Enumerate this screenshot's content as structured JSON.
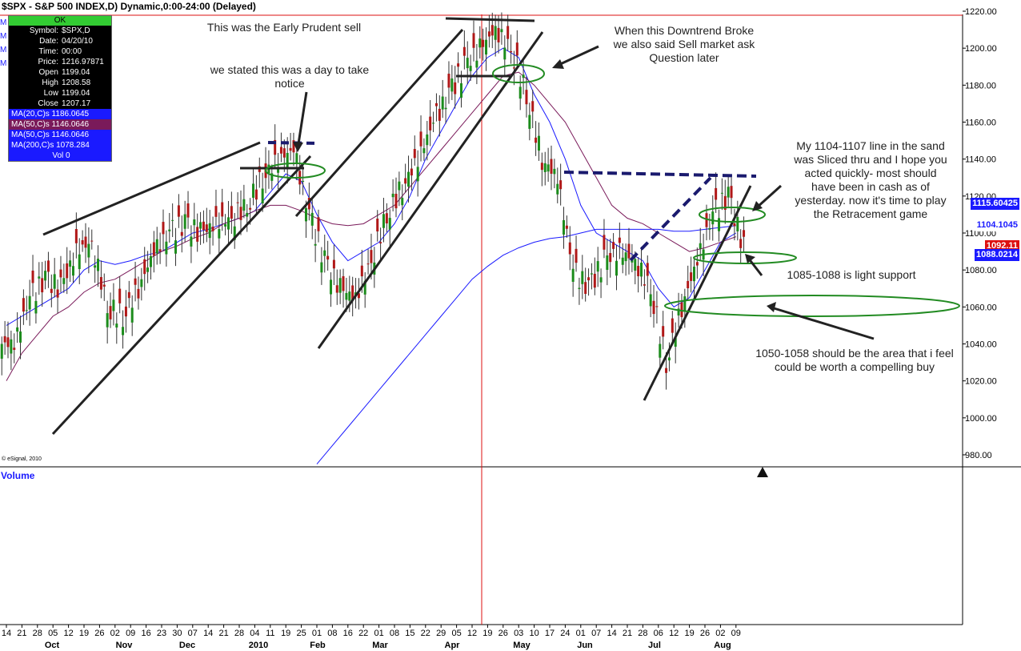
{
  "header": {
    "title": "$SPX - S&P 500 INDEX,D) Dynamic,0:00-24:00 (Delayed)"
  },
  "info_panel": {
    "status": "OK",
    "rows": [
      {
        "k": "Symbol:",
        "v": "$SPX,D"
      },
      {
        "k": "Date:",
        "v": "04/20/10"
      },
      {
        "k": "Time:",
        "v": "00:00"
      },
      {
        "k": "Price:",
        "v": "1216.97871"
      },
      {
        "k": "Open",
        "v": "1199.04"
      },
      {
        "k": "High",
        "v": "1208.58"
      },
      {
        "k": "Low",
        "v": "1199.04"
      },
      {
        "k": "Close",
        "v": "1207.17"
      }
    ],
    "ma_rows": [
      "MA(20,C)s 1186.0645",
      "MA(50,C)s 1146.0646",
      "MA(50,C)s 1146.0646",
      "MA(200,C)s 1078.284"
    ],
    "vol": "Vol 0",
    "side_letters": [
      "M",
      "M",
      "M",
      "M"
    ]
  },
  "price_tags": [
    {
      "label": "1115.60425",
      "color": "#1a1aff",
      "text_color": "#ffffff"
    },
    {
      "label": "1104.1045",
      "color": "#ffffff",
      "text_color": "#1a1aff"
    },
    {
      "label": "1092.11",
      "color": "#dd1111",
      "text_color": "#ffffff"
    },
    {
      "label": "1088.0214",
      "color": "#1a1aff",
      "text_color": "#ffffff"
    }
  ],
  "volume_label": "Volume",
  "copyright": "© eSignal, 2010",
  "annotations": {
    "early_sell": "This was the Early Prudent sell",
    "day_notice": "we stated this was a day to take notice",
    "downtrend": "When this Downtrend Broke we also said Sell market ask Question later",
    "sliced": "My 1104-1107 line in the sand was Sliced thru and I hope you acted quickly- most should have been in cash as of yesterday.  now it's time to play the Retracement game",
    "light_support": "1085-1088 is light support",
    "compelling_buy": "1050-1058 should be the area that i feel could be worth a compelling buy"
  },
  "chart_data": {
    "type": "candlestick",
    "title": "$SPX - S&P 500 INDEX,D) Dynamic,0:00-24:00 (Delayed)",
    "ylim": [
      970,
      1225
    ],
    "y_ticks": [
      980,
      1000,
      1020,
      1040,
      1060,
      1080,
      1100,
      1120,
      1140,
      1160,
      1180,
      1200,
      1220
    ],
    "x_day_ticks": [
      "14",
      "21",
      "28",
      "05",
      "12",
      "19",
      "26",
      "02",
      "09",
      "16",
      "23",
      "30",
      "07",
      "14",
      "21",
      "28",
      "04",
      "11",
      "19",
      "25",
      "01",
      "08",
      "16",
      "22",
      "01",
      "08",
      "15",
      "22",
      "29",
      "05",
      "12",
      "19",
      "26",
      "03",
      "10",
      "17",
      "24",
      "01",
      "07",
      "14",
      "21",
      "28",
      "06",
      "12",
      "19",
      "26",
      "02",
      "09"
    ],
    "x_month_labels": [
      "Oct",
      "Nov",
      "Dec",
      "2010",
      "Feb",
      "Mar",
      "Apr",
      "May",
      "Jun",
      "Jul",
      "Aug"
    ],
    "weekly_closes": [
      1040,
      1065,
      1075,
      1070,
      1090,
      1095,
      1060,
      1055,
      1070,
      1090,
      1100,
      1105,
      1100,
      1105,
      1108,
      1115,
      1130,
      1140,
      1145,
      1110,
      1085,
      1070,
      1065,
      1085,
      1110,
      1125,
      1140,
      1160,
      1175,
      1190,
      1200,
      1210,
      1200,
      1175,
      1140,
      1130,
      1080,
      1070,
      1085,
      1090,
      1085,
      1070,
      1030,
      1060,
      1085,
      1110,
      1120,
      1092
    ],
    "moving_averages": [
      {
        "name": "MA(20,C)s",
        "color": "#1a1aff",
        "values": [
          1050,
          1055,
          1060,
          1065,
          1070,
          1080,
          1085,
          1083,
          1085,
          1088,
          1090,
          1095,
          1100,
          1102,
          1105,
          1108,
          1112,
          1122,
          1132,
          1128,
          1110,
          1095,
          1085,
          1090,
          1095,
          1105,
          1120,
          1140,
          1155,
          1170,
          1185,
          1195,
          1200,
          1195,
          1175,
          1160,
          1140,
          1115,
          1100,
          1095,
          1090,
          1085,
          1070,
          1060,
          1065,
          1080,
          1095,
          1100
        ]
      },
      {
        "name": "MA(50,C)s",
        "color": "#7a1a5a",
        "values": [
          1020,
          1035,
          1045,
          1055,
          1060,
          1068,
          1073,
          1075,
          1080,
          1085,
          1090,
          1093,
          1097,
          1100,
          1105,
          1108,
          1112,
          1115,
          1115,
          1112,
          1108,
          1105,
          1104,
          1105,
          1110,
          1115,
          1125,
          1135,
          1145,
          1155,
          1165,
          1175,
          1185,
          1187,
          1180,
          1170,
          1160,
          1145,
          1130,
          1115,
          1108,
          1105,
          1100,
          1095,
          1090,
          1092,
          1095,
          1098
        ]
      },
      {
        "name": "MA(200,C)s",
        "color": "#1a1aff",
        "values": [
          null,
          null,
          null,
          null,
          null,
          null,
          null,
          null,
          null,
          null,
          null,
          null,
          null,
          null,
          null,
          null,
          null,
          null,
          null,
          null,
          975,
          985,
          995,
          1005,
          1015,
          1025,
          1035,
          1045,
          1055,
          1065,
          1075,
          1082,
          1088,
          1092,
          1095,
          1097,
          1098,
          1100,
          1102,
          1102,
          1102,
          1102,
          1102,
          1101,
          1101,
          1102,
          1103,
          1104
        ]
      }
    ]
  }
}
